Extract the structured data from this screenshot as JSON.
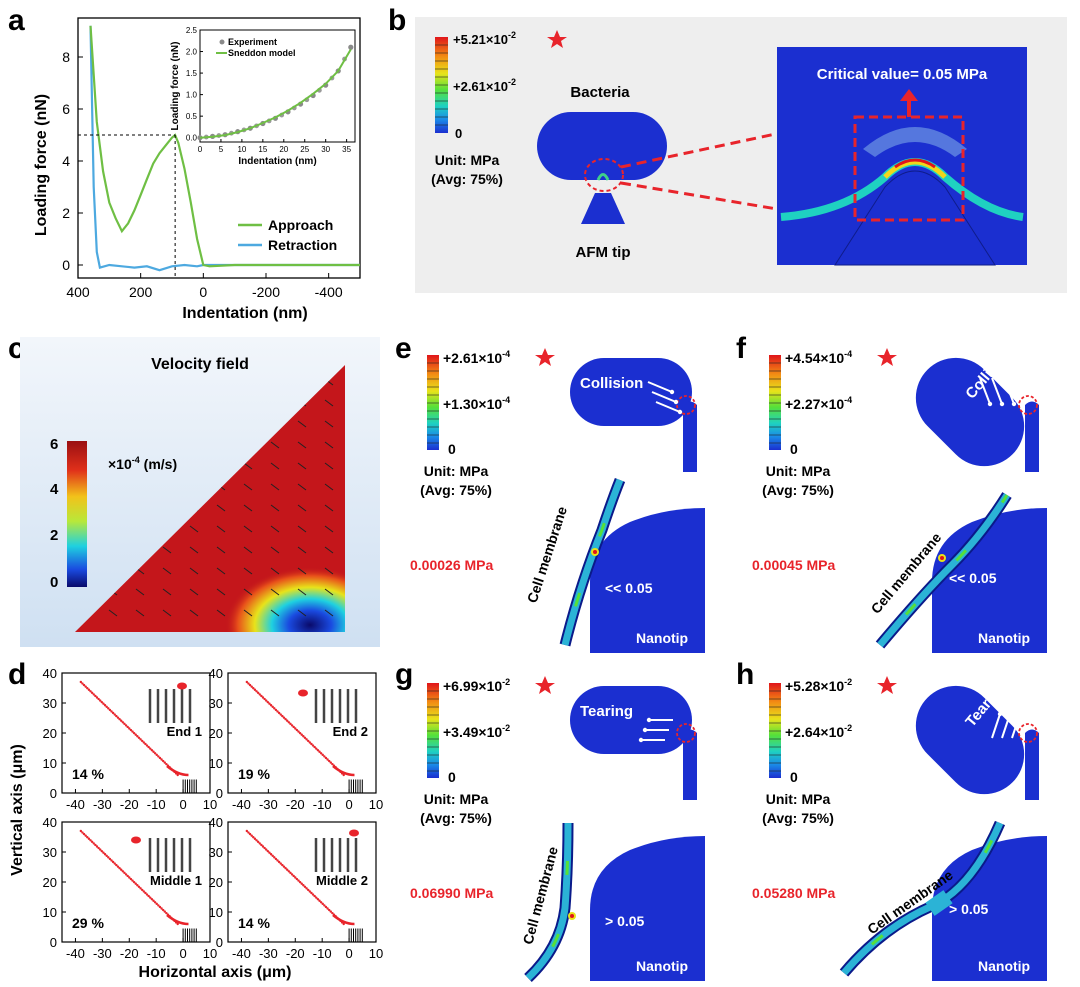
{
  "colors": {
    "accent_red": "#e8242b",
    "fem_blue": "#1b2fd0",
    "approach": "#6fbf44",
    "retraction": "#4da9e0",
    "membrane_label": "#e8242b"
  },
  "panels": {
    "a": "a",
    "b": "b",
    "c": "c",
    "d": "d",
    "e": "e",
    "f": "f",
    "g": "g",
    "h": "h"
  },
  "panel_a": {
    "chart_data": {
      "type": "line",
      "xlabel": "Indentation (nm)",
      "ylabel": "Loading force (nN)",
      "xlim": [
        400,
        -500
      ],
      "ylim": [
        -0.5,
        9.5
      ],
      "xticks": [
        "400",
        "200",
        "0",
        "-200",
        "-400"
      ],
      "yticks": [
        "0",
        "2",
        "4",
        "6",
        "8"
      ],
      "series": [
        {
          "name": "Approach",
          "x": [
            360,
            340,
            320,
            300,
            280,
            260,
            240,
            220,
            200,
            180,
            160,
            140,
            120,
            100,
            90,
            80,
            60,
            40,
            20,
            0,
            -20,
            -100,
            -300,
            -500
          ],
          "y": [
            9.2,
            5.5,
            3.6,
            2.4,
            1.8,
            1.3,
            1.6,
            2.1,
            2.7,
            3.3,
            3.9,
            4.3,
            4.6,
            4.9,
            5.0,
            4.7,
            3.7,
            2.4,
            1.0,
            0.0,
            -0.05,
            0.0,
            0.0,
            0.0
          ]
        },
        {
          "name": "Retraction",
          "x": [
            360,
            350,
            340,
            330,
            300,
            260,
            220,
            180,
            140,
            100,
            60,
            20,
            0,
            -100,
            -300,
            -500
          ],
          "y": [
            9.2,
            3.0,
            0.5,
            -0.1,
            0.0,
            -0.05,
            -0.1,
            -0.05,
            -0.2,
            -0.05,
            0.0,
            -0.05,
            0.0,
            0.0,
            0.0,
            0.0
          ]
        }
      ],
      "annotation": {
        "x": 90,
        "y": 5.0,
        "style": "dashed"
      }
    },
    "inset": {
      "chart_data": {
        "type": "scatter",
        "xlabel": "Indentation (nm)",
        "ylabel": "Loading force (nN)",
        "xlim": [
          0,
          37
        ],
        "ylim": [
          -0.1,
          2.5
        ],
        "xticks": [
          "0",
          "5",
          "10",
          "15",
          "20",
          "25",
          "30",
          "35"
        ],
        "yticks": [
          "0.0",
          "0.5",
          "1.0",
          "1.5",
          "2.0",
          "2.5"
        ],
        "series": [
          {
            "name": "Experiment",
            "x": [
              0,
              3,
              6,
              9,
              12,
              15,
              18,
              21,
              24,
              27,
              30,
              33,
              36
            ],
            "y": [
              0.0,
              0.03,
              0.07,
              0.14,
              0.22,
              0.33,
              0.45,
              0.6,
              0.78,
              0.98,
              1.22,
              1.55,
              2.1
            ]
          },
          {
            "name": "Sneddon model",
            "x": [
              0,
              3,
              6,
              9,
              12,
              15,
              18,
              21,
              24,
              27,
              30,
              33,
              36
            ],
            "y": [
              0.0,
              0.02,
              0.06,
              0.13,
              0.22,
              0.34,
              0.47,
              0.63,
              0.81,
              1.02,
              1.25,
              1.55,
              2.05
            ]
          }
        ]
      }
    }
  },
  "panel_b": {
    "scale_top": "+5.21×10",
    "scale_top_exp": "-2",
    "scale_mid": "+2.61×10",
    "scale_mid_exp": "-2",
    "scale_zero": "0",
    "unit": "Unit: MPa",
    "avg": "(Avg: 75%)",
    "bacteria": "Bacteria",
    "afm_tip": "AFM tip",
    "critical": "Critical value= 0.05 MPa"
  },
  "panel_c": {
    "title": "Velocity field",
    "scale_unit": "×10",
    "scale_unit_exp": "-4",
    "scale_unit_tail": " (m/s)",
    "ticks": [
      "6",
      "4",
      "2",
      "0"
    ]
  },
  "panel_d": {
    "xlabel": "Horizontal axis (μm)",
    "ylabel": "Vertical axis (μm)",
    "xticks": [
      "-40",
      "-30",
      "-20",
      "-10",
      "0",
      "10"
    ],
    "yticks": [
      "0",
      "10",
      "20",
      "30",
      "40"
    ],
    "subplots": [
      {
        "label": "End 1",
        "percent": "14 %"
      },
      {
        "label": "End 2",
        "percent": "19 %"
      },
      {
        "label": "Middle 1",
        "percent": "29 %"
      },
      {
        "label": "Middle 2",
        "percent": "14 %"
      }
    ]
  },
  "sim_panels": [
    {
      "scale_top": "+2.61×10",
      "scale_top_exp": "-4",
      "scale_mid": "+1.30×10",
      "scale_mid_exp": "-4",
      "scale_zero": "0",
      "unit": "Unit: MPa",
      "avg": "(Avg: 75%)",
      "action": "Collision",
      "value": "0.00026 MPa",
      "membrane": "Cell membrane",
      "compare": "<< 0.05",
      "nanotip": "Nanotip"
    },
    {
      "scale_top": "+4.54×10",
      "scale_top_exp": "-4",
      "scale_mid": "+2.27×10",
      "scale_mid_exp": "-4",
      "scale_zero": "0",
      "unit": "Unit: MPa",
      "avg": "(Avg: 75%)",
      "action": "Collision",
      "value": "0.00045 MPa",
      "membrane": "Cell membrane",
      "compare": "<< 0.05",
      "nanotip": "Nanotip"
    },
    {
      "scale_top": "+6.99×10",
      "scale_top_exp": "-2",
      "scale_mid": "+3.49×10",
      "scale_mid_exp": "-2",
      "scale_zero": "0",
      "unit": "Unit: MPa",
      "avg": "(Avg: 75%)",
      "action": "Tearing",
      "value": "0.06990 MPa",
      "membrane": "Cell membrane",
      "compare": "> 0.05",
      "nanotip": "Nanotip"
    },
    {
      "scale_top": "+5.28×10",
      "scale_top_exp": "-2",
      "scale_mid": "+2.64×10",
      "scale_mid_exp": "-2",
      "scale_zero": "0",
      "unit": "Unit: MPa",
      "avg": "(Avg: 75%)",
      "action": "Tearing",
      "value": "0.05280 MPa",
      "membrane": "Cell membrane",
      "compare": "> 0.05",
      "nanotip": "Nanotip"
    }
  ]
}
